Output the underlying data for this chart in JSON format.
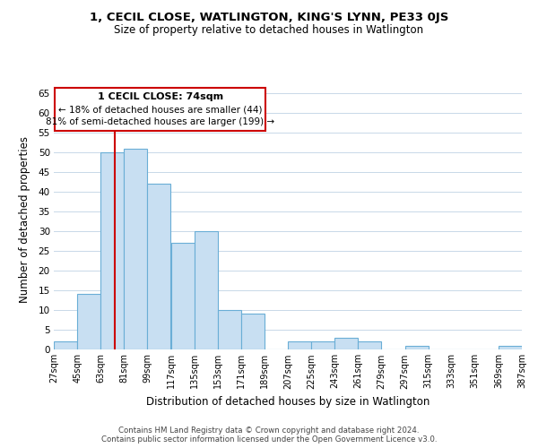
{
  "title": "1, CECIL CLOSE, WATLINGTON, KING'S LYNN, PE33 0JS",
  "subtitle": "Size of property relative to detached houses in Watlington",
  "xlabel": "Distribution of detached houses by size in Watlington",
  "ylabel": "Number of detached properties",
  "bar_left_edges": [
    27,
    45,
    63,
    81,
    99,
    117,
    135,
    153,
    171,
    189,
    207,
    225,
    243,
    261,
    279,
    297,
    315,
    333,
    351,
    369
  ],
  "bar_heights": [
    2,
    14,
    50,
    51,
    42,
    27,
    30,
    10,
    9,
    0,
    2,
    2,
    3,
    2,
    0,
    1,
    0,
    0,
    0,
    1
  ],
  "bin_width": 18,
  "tick_labels": [
    "27sqm",
    "45sqm",
    "63sqm",
    "81sqm",
    "99sqm",
    "117sqm",
    "135sqm",
    "153sqm",
    "171sqm",
    "189sqm",
    "207sqm",
    "225sqm",
    "243sqm",
    "261sqm",
    "279sqm",
    "297sqm",
    "315sqm",
    "333sqm",
    "351sqm",
    "369sqm",
    "387sqm"
  ],
  "bar_color": "#c8dff2",
  "bar_edge_color": "#6aaed6",
  "vertical_line_x": 74,
  "annotation_title": "1 CECIL CLOSE: 74sqm",
  "annotation_line1": "← 18% of detached houses are smaller (44)",
  "annotation_line2": "81% of semi-detached houses are larger (199) →",
  "annotation_box_color": "#ffffff",
  "annotation_box_edge": "#cc0000",
  "vertical_line_color": "#cc0000",
  "ylim": [
    0,
    66
  ],
  "yticks": [
    0,
    5,
    10,
    15,
    20,
    25,
    30,
    35,
    40,
    45,
    50,
    55,
    60,
    65
  ],
  "footer_line1": "Contains HM Land Registry data © Crown copyright and database right 2024.",
  "footer_line2": "Contains public sector information licensed under the Open Government Licence v3.0.",
  "bg_color": "#ffffff",
  "grid_color": "#c8d8e8"
}
